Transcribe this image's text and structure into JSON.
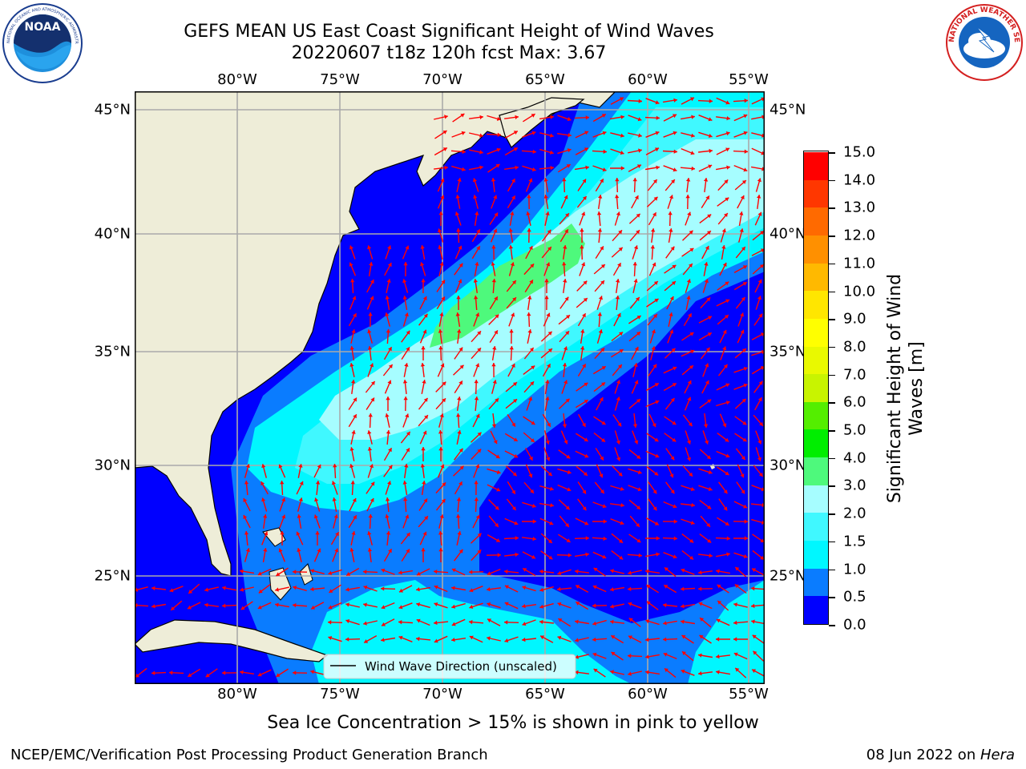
{
  "header": {
    "title_line1": "GEFS MEAN US East Coast Significant Height of Wind Waves",
    "title_line2": "20220607 t18z 120h fcst   Max: 3.67"
  },
  "logos": {
    "left": "noaa-logo",
    "right": "nws-logo"
  },
  "axes": {
    "lon_labels": [
      "80°W",
      "75°W",
      "70°W",
      "65°W",
      "60°W",
      "55°W"
    ],
    "lat_labels": [
      "45°N",
      "40°N",
      "35°N",
      "30°N",
      "25°N"
    ],
    "gridlines": true
  },
  "map": {
    "projection": "lat-lon",
    "lon_range": [
      -85,
      -54.2
    ],
    "lat_range": [
      20,
      46
    ],
    "legend_label": "Wind Wave Direction (unscaled)",
    "arrow_color": "#ff0000",
    "land_color": "#eeedd8"
  },
  "colorbar": {
    "label": "Significant Height of Wind Waves [m]",
    "tick_labels": [
      "0.0",
      "0.5",
      "1.0",
      "1.5",
      "2.0",
      "3.0",
      "4.0",
      "5.0",
      "6.0",
      "7.0",
      "8.0",
      "9.0",
      "10.0",
      "11.0",
      "12.0",
      "13.0",
      "14.0",
      "15.0"
    ],
    "colors": [
      "#0000ff",
      "#0a7cff",
      "#00f7ff",
      "#40f8ff",
      "#a6fdff",
      "#4ef97c",
      "#00ee00",
      "#54ee00",
      "#c8f400",
      "#e9f900",
      "#ffff00",
      "#ffe600",
      "#ffb900",
      "#ff9000",
      "#ff6a00",
      "#ff3700",
      "#ff0000"
    ]
  },
  "footer": {
    "note": "Sea Ice Concentration > 15% is shown in pink to yellow",
    "credit": "NCEP/EMC/Verification Post Processing Product Generation Branch",
    "date_prefix": "08 Jun 2022 on ",
    "date_machine": "Hera"
  }
}
